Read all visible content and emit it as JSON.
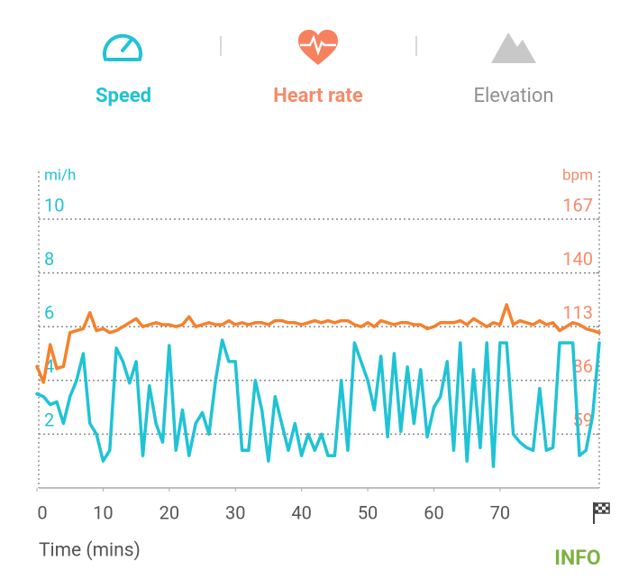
{
  "tabs": [
    {
      "label": "Speed"
    },
    {
      "label": "Heart rate"
    },
    {
      "label": "Elevation"
    }
  ],
  "button": "INFO",
  "chart_data": {
    "type": "line",
    "y_label": "mi/h",
    "y2_label": "bpm",
    "x_label": "Time (mins)",
    "x": [
      0,
      1,
      2,
      3,
      4,
      5,
      6,
      7,
      8,
      9,
      10,
      11,
      12,
      13,
      14,
      15,
      16,
      17,
      18,
      19,
      20,
      21,
      22,
      23,
      24,
      25,
      26,
      27,
      28,
      29,
      30,
      31,
      32,
      33,
      34,
      35,
      36,
      37,
      38,
      39,
      40,
      41,
      42,
      43,
      44,
      45,
      46,
      47,
      48,
      49,
      50,
      51,
      52,
      53,
      54,
      55,
      56,
      57,
      58,
      59,
      60,
      61,
      62,
      63,
      64,
      65,
      66,
      67,
      68,
      69,
      70,
      71,
      72,
      73,
      74,
      75,
      76,
      77,
      78,
      79,
      80,
      81,
      82,
      83,
      84,
      85
    ],
    "xlim": [
      0,
      85
    ],
    "xticks": [
      0,
      10,
      20,
      30,
      40,
      50,
      60,
      70
    ],
    "ylim": [
      0,
      10
    ],
    "yticks": [
      2,
      4,
      6,
      8,
      10
    ],
    "y2lim": [
      32,
      167
    ],
    "y2ticks": [
      59,
      86,
      113,
      140,
      167
    ],
    "grid": true,
    "series": [
      {
        "name": "Heart rate",
        "color": "#f7802c",
        "axis": "y2",
        "values": [
          93,
          85,
          104,
          92,
          93,
          110,
          111,
          112,
          120,
          111,
          112,
          110,
          111,
          113,
          115,
          117,
          113,
          114,
          115,
          114,
          114,
          113,
          114,
          118,
          113,
          114,
          115,
          114,
          114,
          116,
          114,
          115,
          114,
          115,
          115,
          114,
          116,
          116,
          115,
          115,
          114,
          115,
          116,
          115,
          116,
          115,
          116,
          116,
          114,
          113,
          115,
          113,
          116,
          115,
          114,
          115,
          115,
          114,
          114,
          112,
          113,
          115,
          115,
          115,
          116,
          114,
          117,
          115,
          113,
          115,
          114,
          124,
          114,
          116,
          115,
          114,
          116,
          114,
          115,
          111,
          113,
          115,
          114,
          112,
          111,
          110
        ]
      },
      {
        "name": "Speed",
        "color": "#1fc3d5",
        "values": [
          3.5,
          3.4,
          3.1,
          3.2,
          2.4,
          3.4,
          4.0,
          5.0,
          2.4,
          2.0,
          1.0,
          1.4,
          5.2,
          4.7,
          3.9,
          4.7,
          1.2,
          3.8,
          2.4,
          1.7,
          5.3,
          1.4,
          2.9,
          1.2,
          2.4,
          2.8,
          2.0,
          4.0,
          5.5,
          4.7,
          4.7,
          1.4,
          1.4,
          4.0,
          2.9,
          1.0,
          3.4,
          2.4,
          1.4,
          2.4,
          1.2,
          2.0,
          1.4,
          2.0,
          1.2,
          1.2,
          4.0,
          1.4,
          5.4,
          4.7,
          4.0,
          2.9,
          4.9,
          1.9,
          5.0,
          2.1,
          4.5,
          2.4,
          4.4,
          1.9,
          3.0,
          3.4,
          4.7,
          1.4,
          5.4,
          1.0,
          4.4,
          1.5,
          5.4,
          0.8,
          5.4,
          5.4,
          2.0,
          1.7,
          1.5,
          1.4,
          3.7,
          1.4,
          1.5,
          5.4,
          5.4,
          5.4,
          1.2,
          1.4,
          2.7,
          5.4
        ]
      }
    ]
  }
}
